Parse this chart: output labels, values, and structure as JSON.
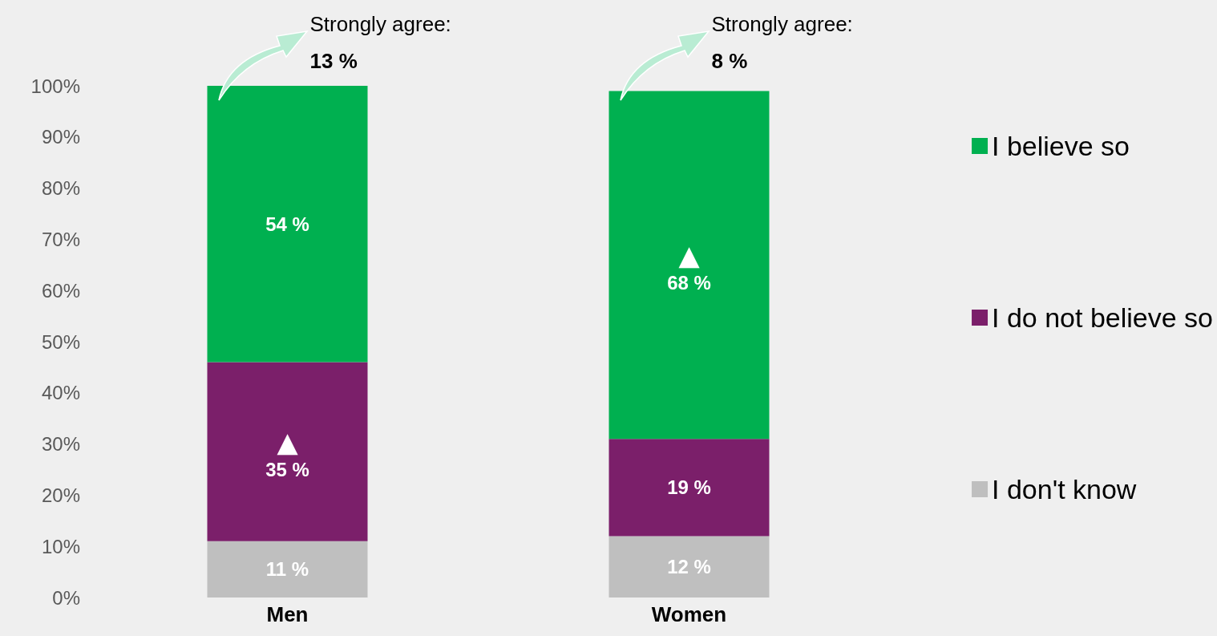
{
  "chart_data": {
    "type": "bar",
    "stacked": true,
    "categories": [
      "Men",
      "Women"
    ],
    "series": [
      {
        "name": "I don't know",
        "color": "#bfbfbf",
        "values": [
          11,
          12
        ],
        "value_labels": [
          "11 %",
          "12 %"
        ]
      },
      {
        "name": "I do not believe so",
        "color": "#7b1f6a",
        "values": [
          35,
          19
        ],
        "value_labels": [
          "▲\n35 %",
          "19 %"
        ]
      },
      {
        "name": "I believe so",
        "color": "#00b050",
        "values": [
          54,
          68
        ],
        "value_labels": [
          "54 %",
          "▲\n68 %"
        ]
      }
    ],
    "ylim": [
      0,
      100
    ],
    "yticks": [
      {
        "value": 0,
        "label": "0%"
      },
      {
        "value": 10,
        "label": "10%"
      },
      {
        "value": 20,
        "label": "20%"
      },
      {
        "value": 30,
        "label": "30%"
      },
      {
        "value": 40,
        "label": "40%"
      },
      {
        "value": 50,
        "label": "50%"
      },
      {
        "value": 60,
        "label": "60%"
      },
      {
        "value": 70,
        "label": "70%"
      },
      {
        "value": 80,
        "label": "80%"
      },
      {
        "value": 90,
        "label": "90%"
      },
      {
        "value": 100,
        "label": "100%"
      }
    ],
    "annotations": [
      "Strongly agree:\n13 %",
      "Strongly agree:\n8 %"
    ],
    "legend": "right",
    "grid": false
  }
}
